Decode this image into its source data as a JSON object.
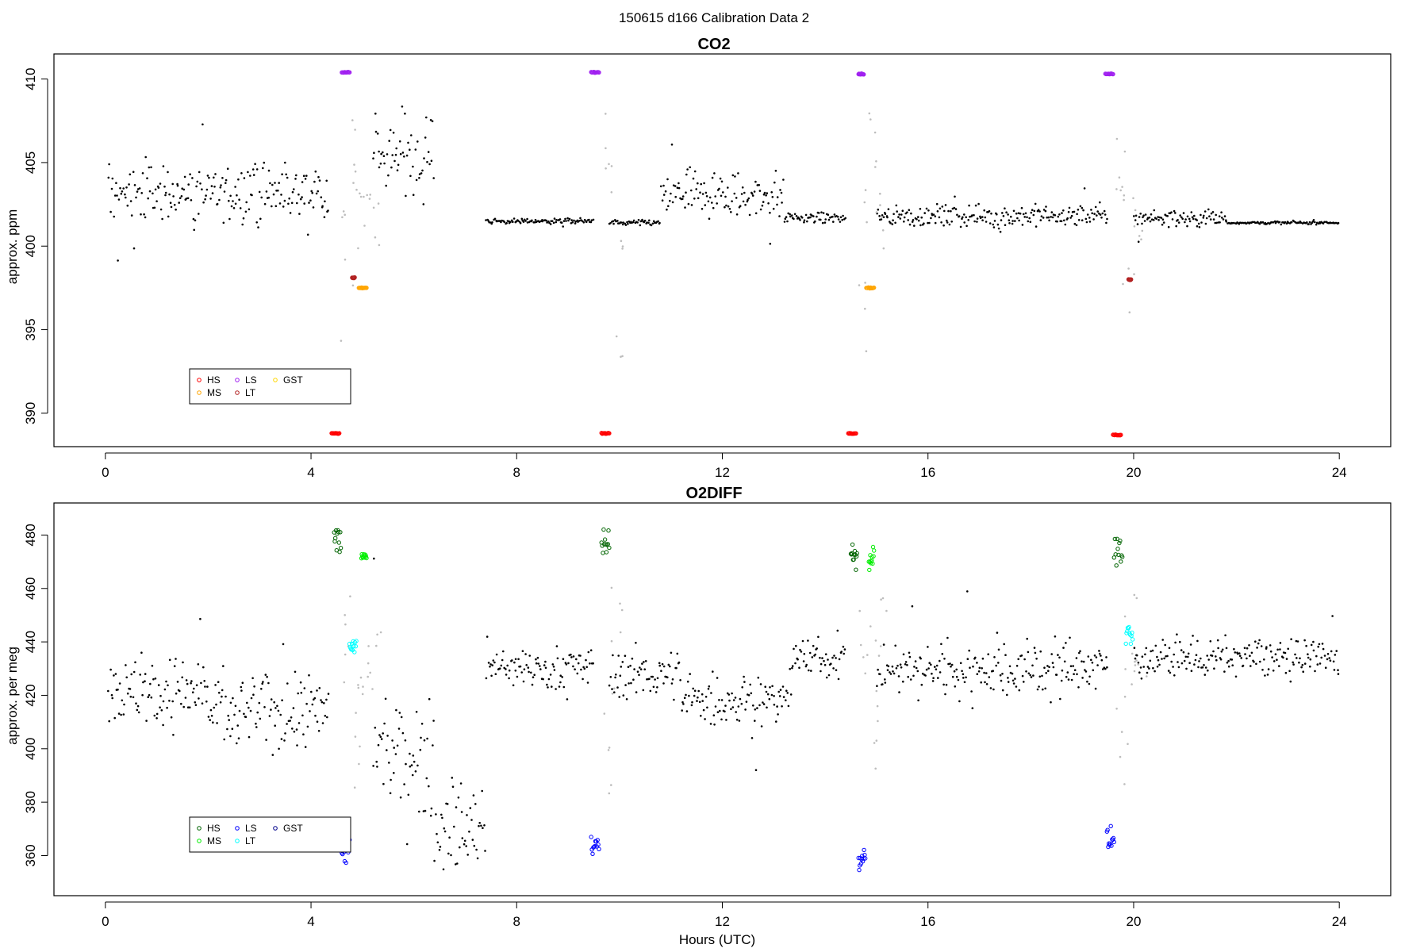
{
  "figure": {
    "title": "150615   d166   Calibration Data 2",
    "xlabel": "Hours (UTC)"
  },
  "colors": {
    "data": "#000000",
    "excluded": "#bdbdbd",
    "axis": "#000000"
  },
  "chart_data": [
    {
      "type": "scatter",
      "title": "CO2",
      "ylabel": "approx. ppm",
      "xlabel": "",
      "xlim": [
        -1,
        25
      ],
      "ylim": [
        388,
        411.5
      ],
      "xticks": [
        0,
        4,
        8,
        12,
        16,
        20,
        24
      ],
      "yticks": [
        390,
        395,
        400,
        405,
        410
      ],
      "legend": {
        "position": "bottom-left",
        "entries": [
          {
            "label": "HS",
            "color": "#ff0000"
          },
          {
            "label": "MS",
            "color": "#ffa500"
          },
          {
            "label": "LS",
            "color": "#a020f0"
          },
          {
            "label": "LT",
            "color": "#b22222"
          },
          {
            "label": "GST",
            "color": "#ffd700"
          }
        ]
      },
      "background_segments": [
        {
          "x_start": 0.05,
          "x_end": 4.35,
          "center": 403.2,
          "spread": 1.6
        },
        {
          "x_start": 5.2,
          "x_end": 6.4,
          "center": 405.5,
          "spread": 2.2
        },
        {
          "x_start": 7.4,
          "x_end": 9.5,
          "center": 401.5,
          "spread": 0.15
        },
        {
          "x_start": 9.8,
          "x_end": 10.8,
          "center": 401.4,
          "spread": 0.15
        },
        {
          "x_start": 10.8,
          "x_end": 13.2,
          "center": 403.0,
          "spread": 1.3
        },
        {
          "x_start": 13.2,
          "x_end": 14.4,
          "center": 401.7,
          "spread": 0.3
        },
        {
          "x_start": 15.0,
          "x_end": 19.5,
          "center": 401.8,
          "spread": 0.6
        },
        {
          "x_start": 20.0,
          "x_end": 21.8,
          "center": 401.7,
          "spread": 0.5
        },
        {
          "x_start": 21.8,
          "x_end": 24.0,
          "center": 401.4,
          "spread": 0.08
        }
      ],
      "calibration_runs": [
        {
          "gas": "HS",
          "x_start": 4.4,
          "x_end": 4.55,
          "y": 388.8
        },
        {
          "gas": "LS",
          "x_start": 4.6,
          "x_end": 4.75,
          "y": 410.4
        },
        {
          "gas": "LT",
          "x_start": 4.8,
          "x_end": 4.85,
          "y": 398.1
        },
        {
          "gas": "MS",
          "x_start": 4.93,
          "x_end": 5.08,
          "y": 397.5
        },
        {
          "gas": "LS",
          "x_start": 9.45,
          "x_end": 9.6,
          "y": 410.4
        },
        {
          "gas": "HS",
          "x_start": 9.65,
          "x_end": 9.8,
          "y": 388.8
        },
        {
          "gas": "HS",
          "x_start": 14.45,
          "x_end": 14.6,
          "y": 388.8
        },
        {
          "gas": "LS",
          "x_start": 14.65,
          "x_end": 14.75,
          "y": 410.3
        },
        {
          "gas": "MS",
          "x_start": 14.8,
          "x_end": 14.95,
          "y": 397.5
        },
        {
          "gas": "LS",
          "x_start": 19.45,
          "x_end": 19.6,
          "y": 410.3
        },
        {
          "gas": "HS",
          "x_start": 19.6,
          "x_end": 19.75,
          "y": 388.7
        },
        {
          "gas": "LT",
          "x_start": 19.9,
          "x_end": 19.95,
          "y": 398.0
        }
      ]
    },
    {
      "type": "scatter",
      "title": "O2DIFF",
      "ylabel": "approx. per meg",
      "xlabel": "Hours (UTC)",
      "xlim": [
        -1,
        25
      ],
      "ylim": [
        345,
        492
      ],
      "xticks": [
        0,
        4,
        8,
        12,
        16,
        20,
        24
      ],
      "yticks": [
        360,
        380,
        400,
        420,
        440,
        460,
        480
      ],
      "legend": {
        "position": "bottom-left",
        "entries": [
          {
            "label": "HS",
            "color": "#006400"
          },
          {
            "label": "MS",
            "color": "#00ee00"
          },
          {
            "label": "LS",
            "color": "#0000ff"
          },
          {
            "label": "LT",
            "color": "#00ffff"
          },
          {
            "label": "GST",
            "color": "#00008b"
          }
        ]
      },
      "background_segments": [
        {
          "x_start": 0.05,
          "x_end": 2.0,
          "center": 422,
          "spread": 11
        },
        {
          "x_start": 2.0,
          "x_end": 4.35,
          "center": 414,
          "spread": 13
        },
        {
          "x_start": 5.2,
          "x_end": 6.4,
          "center": 398,
          "spread": 20
        },
        {
          "x_start": 6.4,
          "x_end": 7.4,
          "center": 370,
          "spread": 14
        },
        {
          "x_start": 7.4,
          "x_end": 9.5,
          "center": 430,
          "spread": 7
        },
        {
          "x_start": 9.8,
          "x_end": 11.2,
          "center": 428,
          "spread": 8
        },
        {
          "x_start": 11.2,
          "x_end": 13.3,
          "center": 418,
          "spread": 10
        },
        {
          "x_start": 13.3,
          "x_end": 14.4,
          "center": 434,
          "spread": 7
        },
        {
          "x_start": 15.0,
          "x_end": 19.5,
          "center": 430,
          "spread": 10
        },
        {
          "x_start": 20.0,
          "x_end": 24.0,
          "center": 434,
          "spread": 6
        }
      ],
      "calibration_runs": [
        {
          "gas": "HS",
          "x_start": 4.45,
          "x_end": 4.58,
          "y": 478,
          "spread": 6
        },
        {
          "gas": "LS",
          "x_start": 4.6,
          "x_end": 4.75,
          "y": 362,
          "spread": 5
        },
        {
          "gas": "LT",
          "x_start": 4.75,
          "x_end": 4.88,
          "y": 438,
          "spread": 5
        },
        {
          "gas": "MS",
          "x_start": 4.98,
          "x_end": 5.08,
          "y": 472,
          "spread": 2
        },
        {
          "gas": "LS",
          "x_start": 9.45,
          "x_end": 9.6,
          "y": 364,
          "spread": 4
        },
        {
          "gas": "HS",
          "x_start": 9.65,
          "x_end": 9.8,
          "y": 478,
          "spread": 6
        },
        {
          "gas": "HS",
          "x_start": 14.5,
          "x_end": 14.62,
          "y": 472,
          "spread": 7
        },
        {
          "gas": "LS",
          "x_start": 14.65,
          "x_end": 14.78,
          "y": 359,
          "spread": 5
        },
        {
          "gas": "MS",
          "x_start": 14.85,
          "x_end": 14.95,
          "y": 472,
          "spread": 5
        },
        {
          "gas": "LS",
          "x_start": 19.48,
          "x_end": 19.62,
          "y": 366,
          "spread": 5
        },
        {
          "gas": "HS",
          "x_start": 19.62,
          "x_end": 19.78,
          "y": 474,
          "spread": 6
        },
        {
          "gas": "LT",
          "x_start": 19.85,
          "x_end": 19.98,
          "y": 442,
          "spread": 4
        }
      ]
    }
  ]
}
